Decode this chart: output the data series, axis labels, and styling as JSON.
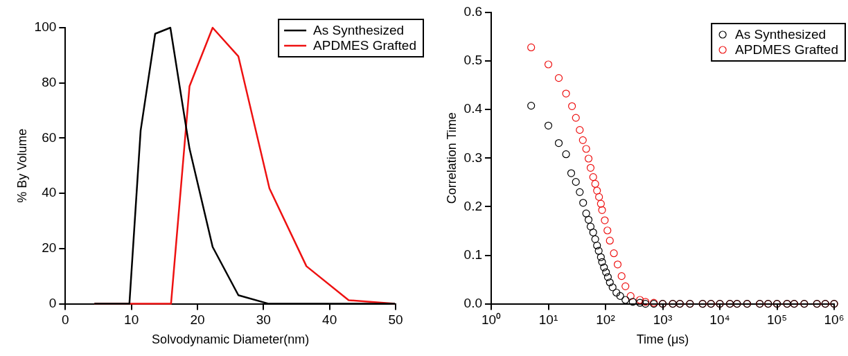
{
  "chart_data": [
    {
      "type": "line",
      "xlabel": "Solvodynamic Diameter(nm)",
      "ylabel": "% By Volume",
      "xlim": [
        0,
        50
      ],
      "xticks": [
        0,
        10,
        20,
        30,
        40,
        50
      ],
      "ylim": [
        0,
        100
      ],
      "yticks": [
        0,
        20,
        40,
        60,
        80,
        100
      ],
      "grid": false,
      "legend": "top right",
      "marker": "none",
      "line_style": "solid",
      "series": [
        {
          "name": "As Synthesized",
          "color": "#000000",
          "x": [
            4.4,
            9.7,
            11.4,
            13.6,
            15.9,
            18.8,
            22.3,
            26.2,
            30.8,
            49.9
          ],
          "values": [
            0,
            0,
            62.7,
            97.8,
            100,
            56.2,
            20.6,
            3.1,
            0,
            0
          ]
        },
        {
          "name": "APDMES Grafted",
          "color": "#ee1111",
          "x": [
            4.4,
            16.0,
            18.8,
            22.3,
            26.2,
            30.9,
            36.5,
            42.9,
            49.9
          ],
          "values": [
            0,
            0,
            78.8,
            100,
            89.6,
            41.8,
            13.6,
            1.3,
            0
          ]
        }
      ]
    },
    {
      "type": "scatter",
      "xlabel": "Time (μs)",
      "ylabel": "Correlation Time",
      "log": "x",
      "xlim": [
        1,
        1000000
      ],
      "xticks": [
        {
          "value": 1,
          "label": "10⁰"
        },
        {
          "value": 10,
          "label": "10¹"
        },
        {
          "value": 100,
          "label": "10²"
        },
        {
          "value": 1000,
          "label": "10³"
        },
        {
          "value": 10000,
          "label": "10⁴"
        },
        {
          "value": 100000,
          "label": "10⁵"
        },
        {
          "value": 1000000,
          "label": "10⁶"
        }
      ],
      "ylim": [
        0,
        0.6
      ],
      "yticks": [
        {
          "value": 0,
          "label": "0.0"
        },
        0.1,
        0.2,
        0.3,
        0.4,
        0.5,
        0.6
      ],
      "grid": false,
      "legend": "top right",
      "marker": "circle",
      "series": [
        {
          "name": "As Synthesized",
          "color": "#000000",
          "x": [
            5.0,
            10,
            15.2,
            20.4,
            25.1,
            30.3,
            35.4,
            40.6,
            45.9,
            50.5,
            54.8,
            60.8,
            66,
            71,
            76,
            83,
            87,
            94,
            102,
            110,
            119,
            133,
            155,
            181,
            223,
            300,
            400,
            500,
            700,
            1000,
            1500,
            2000,
            3000,
            5000,
            7000,
            10000,
            15000,
            20000,
            30000,
            50000,
            70000,
            100000,
            150000,
            200000,
            300000,
            500000,
            700000,
            1000000
          ],
          "values": [
            0.408,
            0.367,
            0.331,
            0.308,
            0.269,
            0.251,
            0.23,
            0.208,
            0.186,
            0.173,
            0.159,
            0.147,
            0.133,
            0.12,
            0.109,
            0.096,
            0.086,
            0.075,
            0.065,
            0.055,
            0.044,
            0.034,
            0.023,
            0.016,
            0.008,
            0.004,
            0.002,
            0,
            0,
            0,
            0,
            0,
            0,
            0,
            0,
            0,
            0,
            0,
            0,
            0,
            0,
            0,
            0,
            0,
            0,
            0,
            0,
            0
          ]
        },
        {
          "name": "APDMES Grafted",
          "color": "#ee1111",
          "x": [
            5.0,
            10,
            15.2,
            20.4,
            25.9,
            30.3,
            35.4,
            40.1,
            45.9,
            50.5,
            54.8,
            60.8,
            66,
            71,
            77,
            83,
            87,
            97,
            108,
            119,
            140,
            163,
            191,
            223,
            275,
            400,
            500,
            700,
            1000,
            1500,
            2000,
            3000,
            5000,
            7000,
            10000,
            15000,
            20000,
            30000,
            50000,
            70000,
            100000,
            150000,
            200000,
            300000,
            500000,
            700000,
            1000000
          ],
          "values": [
            0.528,
            0.493,
            0.465,
            0.433,
            0.407,
            0.383,
            0.358,
            0.337,
            0.319,
            0.299,
            0.28,
            0.261,
            0.247,
            0.233,
            0.22,
            0.206,
            0.193,
            0.172,
            0.151,
            0.13,
            0.104,
            0.081,
            0.057,
            0.036,
            0.016,
            0.008,
            0.004,
            0.002,
            0,
            0,
            0,
            0,
            0,
            0,
            0,
            0,
            0,
            0,
            0,
            0,
            0,
            0,
            0,
            0,
            0,
            0,
            0
          ]
        }
      ]
    }
  ]
}
